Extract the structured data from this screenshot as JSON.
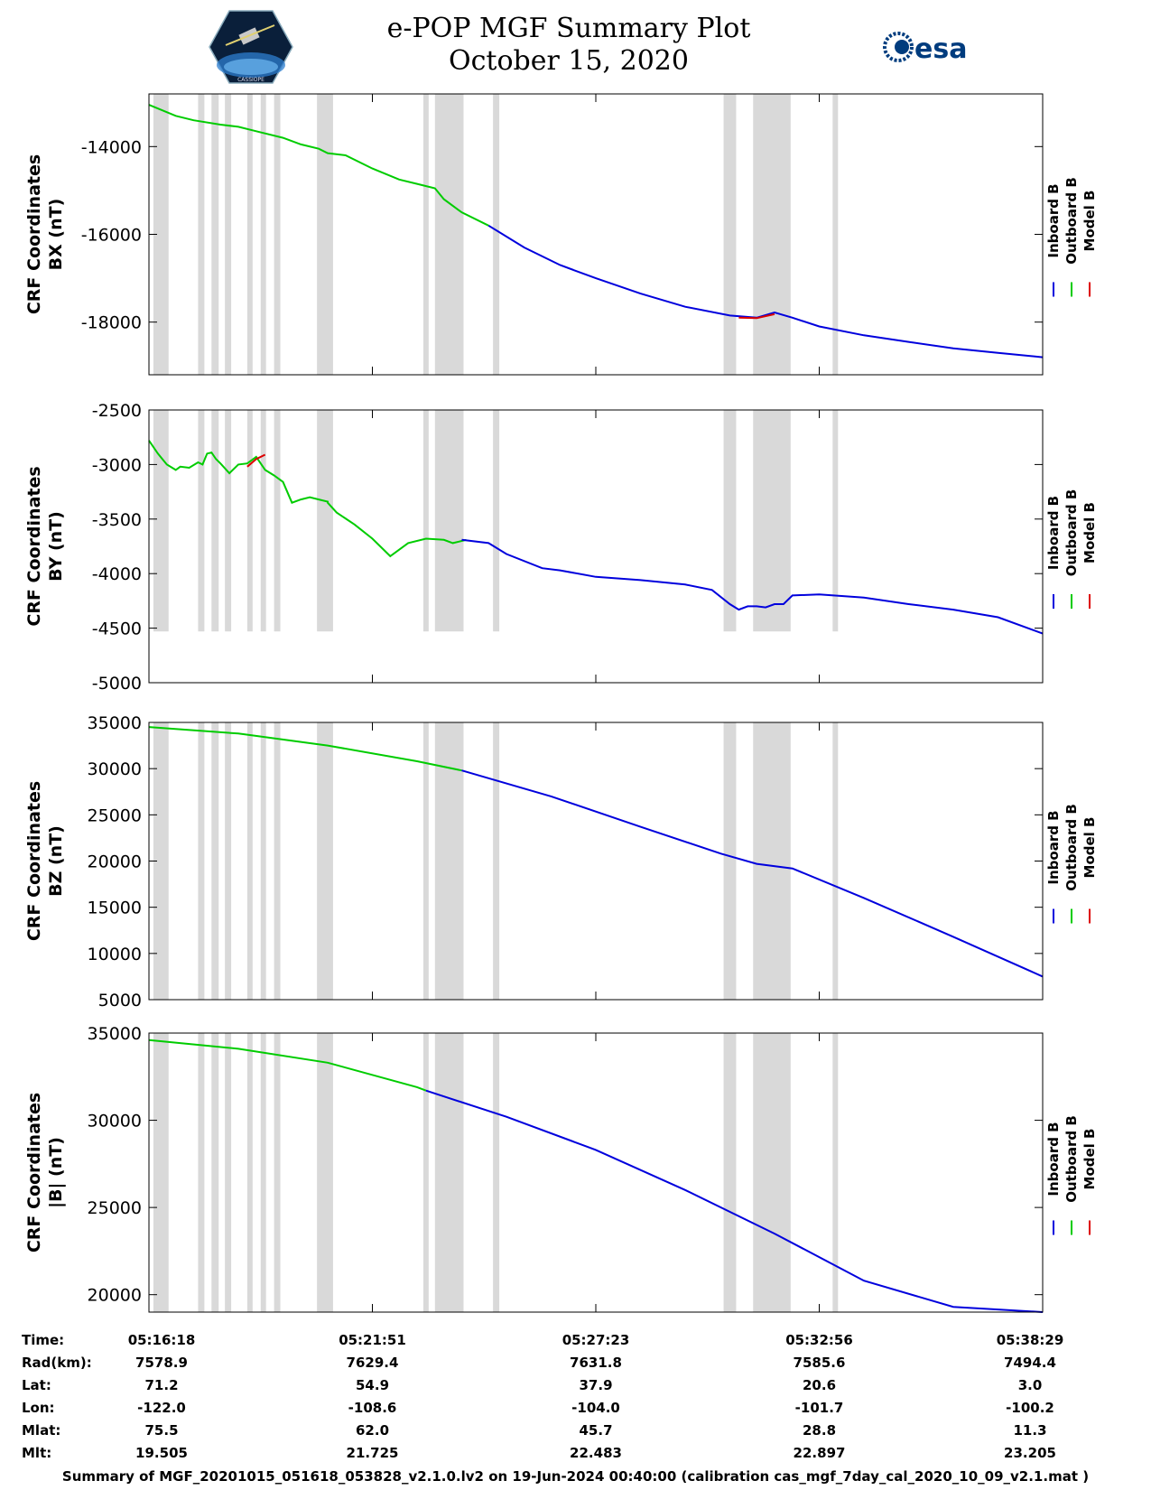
{
  "header": {
    "title_line1": "e-POP MGF Summary Plot",
    "title_line2": "October 15, 2020",
    "logo_left_text": "CASSIOPE",
    "logo_right_text": "esa"
  },
  "colors": {
    "inboard": "#0000dd",
    "outboard": "#00cc00",
    "model": "#dd0000",
    "shade": "#d9d9d9"
  },
  "legend": [
    "Inboard B",
    "Outboard B",
    "Model B"
  ],
  "ephemeris": {
    "rows": [
      {
        "label": "Time:",
        "values": [
          "05:16:18",
          "05:21:51",
          "05:27:23",
          "05:32:56",
          "05:38:29"
        ]
      },
      {
        "label": "Rad(km):",
        "values": [
          "7578.9",
          "7629.4",
          "7631.8",
          "7585.6",
          "7494.4"
        ]
      },
      {
        "label": "Lat:",
        "values": [
          "71.2",
          "54.9",
          "37.9",
          "20.6",
          "3.0"
        ]
      },
      {
        "label": "Lon:",
        "values": [
          "-122.0",
          "-108.6",
          "-104.0",
          "-101.7",
          "-100.2"
        ]
      },
      {
        "label": "Mlat:",
        "values": [
          "75.5",
          "62.0",
          "45.7",
          "28.8",
          "11.3"
        ]
      },
      {
        "label": "Mlt:",
        "values": [
          "19.505",
          "21.725",
          "22.483",
          "22.897",
          "23.205"
        ]
      }
    ]
  },
  "footer": "Summary of MGF_20201015_051618_053828_v2.1.0.lv2 on 19-Jun-2024 00:40:00 (calibration cas_mgf_7day_cal_2020_10_09_v2.1.mat )",
  "chart_data": [
    {
      "type": "line",
      "ylabel_line1": "CRF Coordinates",
      "ylabel_line2": "BX (nT)",
      "ylim": [
        -19200,
        -12800
      ],
      "yticks": [
        -14000,
        -16000,
        -18000
      ],
      "xlim": [
        0,
        1
      ],
      "series": [
        {
          "name": "Outboard B",
          "x": [
            0,
            0.03,
            0.05,
            0.08,
            0.1,
            0.12,
            0.15,
            0.17,
            0.19,
            0.2,
            0.22,
            0.25,
            0.28,
            0.3,
            0.32,
            0.33,
            0.35,
            0.38
          ],
          "values": [
            -13050,
            -13300,
            -13400,
            -13500,
            -13550,
            -13650,
            -13800,
            -13950,
            -14050,
            -14150,
            -14200,
            -14500,
            -14750,
            -14850,
            -14950,
            -15200,
            -15500,
            -15800
          ]
        },
        {
          "name": "Inboard B",
          "x": [
            0.38,
            0.42,
            0.46,
            0.5,
            0.55,
            0.6,
            0.65,
            0.68,
            0.7,
            0.72,
            0.75,
            0.8,
            0.85,
            0.9,
            0.95,
            1.0
          ],
          "values": [
            -15800,
            -16300,
            -16700,
            -17000,
            -17350,
            -17650,
            -17850,
            -17900,
            -17780,
            -17900,
            -18100,
            -18300,
            -18450,
            -18600,
            -18700,
            -18800
          ]
        },
        {
          "name": "Model B",
          "x": [
            0.66,
            0.68,
            0.7
          ],
          "values": [
            -17900,
            -17910,
            -17820
          ]
        }
      ]
    },
    {
      "type": "line",
      "ylabel_line1": "CRF Coordinates",
      "ylabel_line2": "BY (nT)",
      "ylim": [
        -5000,
        -2500
      ],
      "yticks": [
        -2500,
        -3000,
        -3500,
        -4000,
        -4500,
        -5000
      ],
      "xlim": [
        0,
        1
      ],
      "series": [
        {
          "name": "Outboard B",
          "x": [
            0,
            0.01,
            0.02,
            0.03,
            0.035,
            0.045,
            0.055,
            0.06,
            0.065,
            0.07,
            0.075,
            0.08,
            0.09,
            0.1,
            0.11,
            0.115,
            0.12,
            0.13,
            0.14,
            0.15,
            0.16,
            0.17,
            0.18,
            0.19,
            0.2,
            0.2,
            0.21,
            0.23,
            0.25,
            0.27,
            0.29,
            0.31,
            0.33,
            0.34,
            0.35,
            0.355
          ],
          "values": [
            -2780,
            -2900,
            -3000,
            -3050,
            -3020,
            -3030,
            -2980,
            -3000,
            -2900,
            -2890,
            -2950,
            -2990,
            -3080,
            -3000,
            -2990,
            -2960,
            -2930,
            -3050,
            -3100,
            -3160,
            -3350,
            -3320,
            -3300,
            -3320,
            -3340,
            -3350,
            -3440,
            -3550,
            -3680,
            -3840,
            -3720,
            -3680,
            -3690,
            -3720,
            -3700,
            -3690
          ]
        },
        {
          "name": "Inboard B",
          "x": [
            0.35,
            0.38,
            0.4,
            0.44,
            0.46,
            0.5,
            0.55,
            0.6,
            0.63,
            0.65,
            0.66,
            0.67,
            0.68,
            0.69,
            0.7,
            0.71,
            0.72,
            0.75,
            0.8,
            0.85,
            0.9,
            0.95,
            1.0
          ],
          "values": [
            -3690,
            -3720,
            -3820,
            -3950,
            -3970,
            -4030,
            -4060,
            -4100,
            -4150,
            -4280,
            -4330,
            -4300,
            -4300,
            -4310,
            -4280,
            -4280,
            -4200,
            -4190,
            -4220,
            -4280,
            -4330,
            -4400,
            -4550
          ]
        },
        {
          "name": "Model B",
          "x": [
            0.11,
            0.12,
            0.13
          ],
          "values": [
            -3020,
            -2950,
            -2910
          ]
        }
      ]
    },
    {
      "type": "line",
      "ylabel_line1": "CRF Coordinates",
      "ylabel_line2": "BZ (nT)",
      "ylim": [
        5000,
        35000
      ],
      "yticks": [
        35000,
        30000,
        25000,
        20000,
        15000,
        10000,
        5000
      ],
      "xlim": [
        0,
        1
      ],
      "series": [
        {
          "name": "Outboard B",
          "x": [
            0,
            0.1,
            0.2,
            0.3,
            0.35
          ],
          "values": [
            34500,
            33800,
            32500,
            30800,
            29800
          ]
        },
        {
          "name": "Inboard B",
          "x": [
            0.35,
            0.45,
            0.55,
            0.64,
            0.68,
            0.72,
            0.8,
            0.9,
            1.0
          ],
          "values": [
            29800,
            27000,
            23700,
            20800,
            19700,
            19200,
            16000,
            11800,
            7500
          ]
        }
      ]
    },
    {
      "type": "line",
      "ylabel_line1": "CRF Coordinates",
      "ylabel_line2": "|B| (nT)",
      "ylim": [
        19000,
        35000
      ],
      "yticks": [
        35000,
        30000,
        25000,
        20000
      ],
      "xlim": [
        0,
        1
      ],
      "series": [
        {
          "name": "Outboard B",
          "x": [
            0,
            0.1,
            0.2,
            0.3,
            0.31
          ],
          "values": [
            34600,
            34100,
            33300,
            31900,
            31700
          ]
        },
        {
          "name": "Inboard B",
          "x": [
            0.31,
            0.4,
            0.5,
            0.6,
            0.7,
            0.8,
            0.9,
            1.0
          ],
          "values": [
            31700,
            30200,
            28300,
            26000,
            23500,
            20800,
            19300,
            19000
          ]
        }
      ]
    }
  ],
  "x_axis": {
    "tick_fractions": [
      0,
      0.25,
      0.5,
      0.75,
      1.0
    ]
  },
  "shaded_regions": [
    [
      0.005,
      0.022
    ],
    [
      0.055,
      0.062
    ],
    [
      0.07,
      0.078
    ],
    [
      0.085,
      0.092
    ],
    [
      0.11,
      0.116
    ],
    [
      0.125,
      0.131
    ],
    [
      0.14,
      0.147
    ],
    [
      0.188,
      0.206
    ],
    [
      0.307,
      0.313
    ],
    [
      0.32,
      0.352
    ],
    [
      0.385,
      0.392
    ],
    [
      0.643,
      0.657
    ],
    [
      0.676,
      0.718
    ],
    [
      0.765,
      0.771
    ]
  ]
}
